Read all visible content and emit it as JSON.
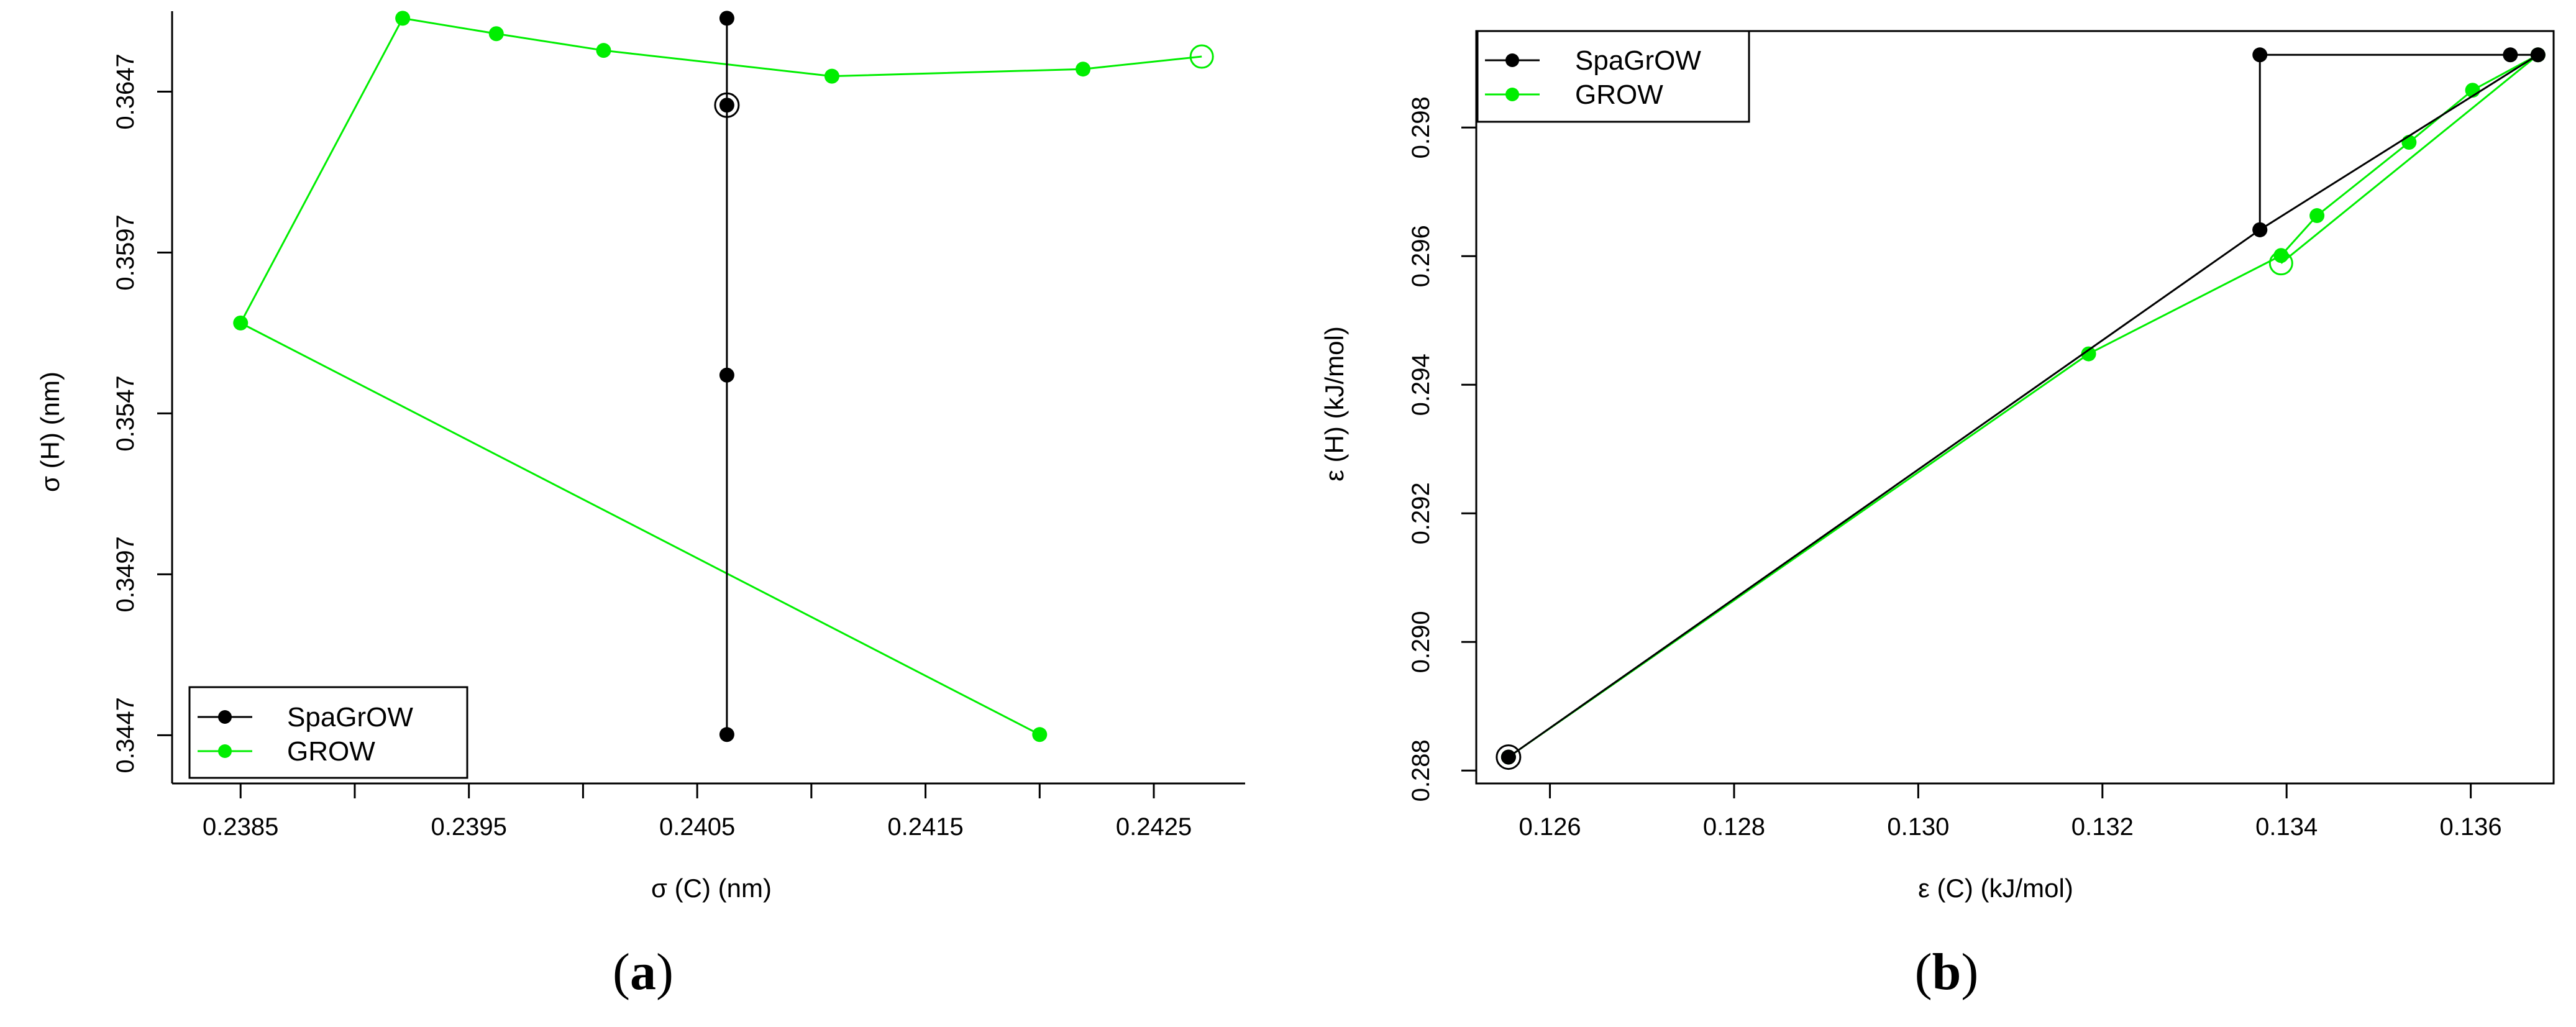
{
  "chart_data": [
    {
      "type": "line",
      "panel_label": "a",
      "xlabel": "σ (C) (nm)",
      "ylabel": "σ (H) (nm)",
      "xlim": [
        0.2382,
        0.2429
      ],
      "ylim": [
        0.3432,
        0.3672
      ],
      "xticks": [
        0.2385,
        0.239,
        0.2395,
        0.24,
        0.2405,
        0.241,
        0.2415,
        0.242,
        0.2425
      ],
      "xtick_labels": [
        "0.2385",
        "",
        "0.2395",
        "",
        "0.2405",
        "",
        "0.2415",
        "",
        "0.2425"
      ],
      "yticks": [
        0.3447,
        0.3497,
        0.3547,
        0.3597,
        0.3647
      ],
      "ytick_labels": [
        "0.3447",
        "0.3497",
        "0.3547",
        "0.3597",
        "0.3647"
      ],
      "box": "L",
      "legend_position": "bottom-left",
      "series": [
        {
          "name": "SpaGrOW",
          "color": "#000000",
          "x": [
            0.24063,
            0.24063,
            0.24063,
            0.24063
          ],
          "y": [
            0.36698,
            0.34472,
            0.35589,
            0.36428
          ],
          "final_marker": "ring"
        },
        {
          "name": "GROW",
          "color": "#00ee00",
          "x": [
            0.242,
            0.2385,
            0.23921,
            0.23962,
            0.24009,
            0.24109,
            0.24219,
            0.24271
          ],
          "y": [
            0.34472,
            0.35751,
            0.36698,
            0.3665,
            0.36598,
            0.36518,
            0.3654,
            0.36579
          ],
          "final_marker": "open-circle"
        }
      ]
    },
    {
      "type": "line",
      "panel_label": "b",
      "xlabel": "ε (C) (kJ/mol)",
      "ylabel": "ε (H) (kJ/mol)",
      "xlim": [
        0.1252,
        0.1369
      ],
      "ylim": [
        0.2878,
        0.2995
      ],
      "xticks": [
        0.126,
        0.128,
        0.13,
        0.132,
        0.134,
        0.136
      ],
      "xtick_labels": [
        "0.126",
        "0.128",
        "0.130",
        "0.132",
        "0.134",
        "0.136"
      ],
      "yticks": [
        0.288,
        0.29,
        0.292,
        0.294,
        0.296,
        0.298
      ],
      "ytick_labels": [
        "0.288",
        "0.290",
        "0.292",
        "0.294",
        "0.296",
        "0.298"
      ],
      "box": "full",
      "legend_position": "top-left",
      "series": [
        {
          "name": "SpaGrOW",
          "color": "#000000",
          "x": [
            0.12555,
            0.13371,
            0.13371,
            0.13643,
            0.13673,
            0.13371,
            0.12555
          ],
          "y": [
            0.28821,
            0.29641,
            0.29913,
            0.29913,
            0.29913,
            0.29641,
            0.28821
          ],
          "final_marker": "ring"
        },
        {
          "name": "GROW",
          "color": "#00ee00",
          "x": [
            0.12555,
            0.13185,
            0.13394,
            0.13433,
            0.13533,
            0.13602,
            0.13673,
            0.13394
          ],
          "y": [
            0.28821,
            0.29448,
            0.29601,
            0.29663,
            0.29777,
            0.29858,
            0.29913,
            0.29589
          ],
          "final_marker": "open-circle"
        }
      ]
    }
  ]
}
